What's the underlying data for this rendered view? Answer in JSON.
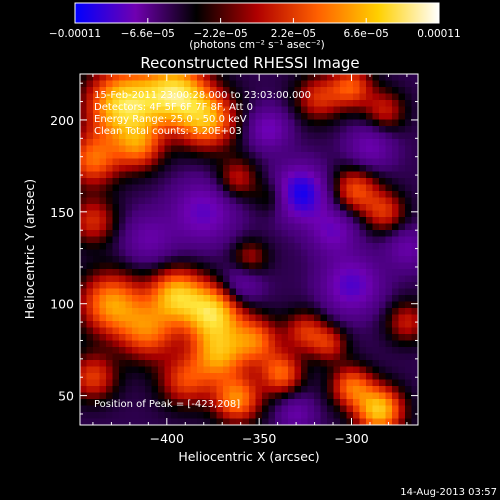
{
  "chart_data": {
    "type": "heatmap",
    "title": "Reconstructed RHESSI Image",
    "xlabel": "Heliocentric X (arcsec)",
    "ylabel": "Heliocentric Y (arcsec)",
    "xlim": [
      -447,
      -264
    ],
    "ylim": [
      34,
      225
    ],
    "x_ticks": [
      -400,
      -350,
      -300
    ],
    "x_tick_labels": [
      "−400",
      "−350",
      "−300"
    ],
    "y_ticks": [
      50,
      100,
      150,
      200
    ],
    "y_tick_labels": [
      "50",
      "100",
      "150",
      "200"
    ],
    "colorbar": {
      "min": -0.00011,
      "max": 0.00011,
      "ticks": [
        -0.00011,
        -6.6e-05,
        -2.2e-05,
        2.2e-05,
        6.6e-05,
        0.00011
      ],
      "tick_labels": [
        "−0.00011",
        "−6.6e−05",
        "−2.2e−05",
        "2.2e−05",
        "6.6e−05",
        "0.00011"
      ],
      "unit_label": "(photons cm⁻² s⁻¹ asec⁻²)",
      "colors": [
        "#0000ff",
        "#7000b0",
        "#000000",
        "#b00000",
        "#ff6000",
        "#ffd000",
        "#ffffff"
      ]
    },
    "annotations": [
      "15-Feb-2011 23:00:28.000 to 23:03:00.000",
      "Detectors: 4F 5F 6F 7F 8F, Att 0",
      "Energy Range: 25.0 - 50.0 keV",
      "Clean    Total counts: 3.20E+03"
    ],
    "peak_label": "Position of Peak = [-423,208]",
    "peak": [
      -423,
      208
    ]
  },
  "footer_date": "14-Aug-2013 03:57"
}
